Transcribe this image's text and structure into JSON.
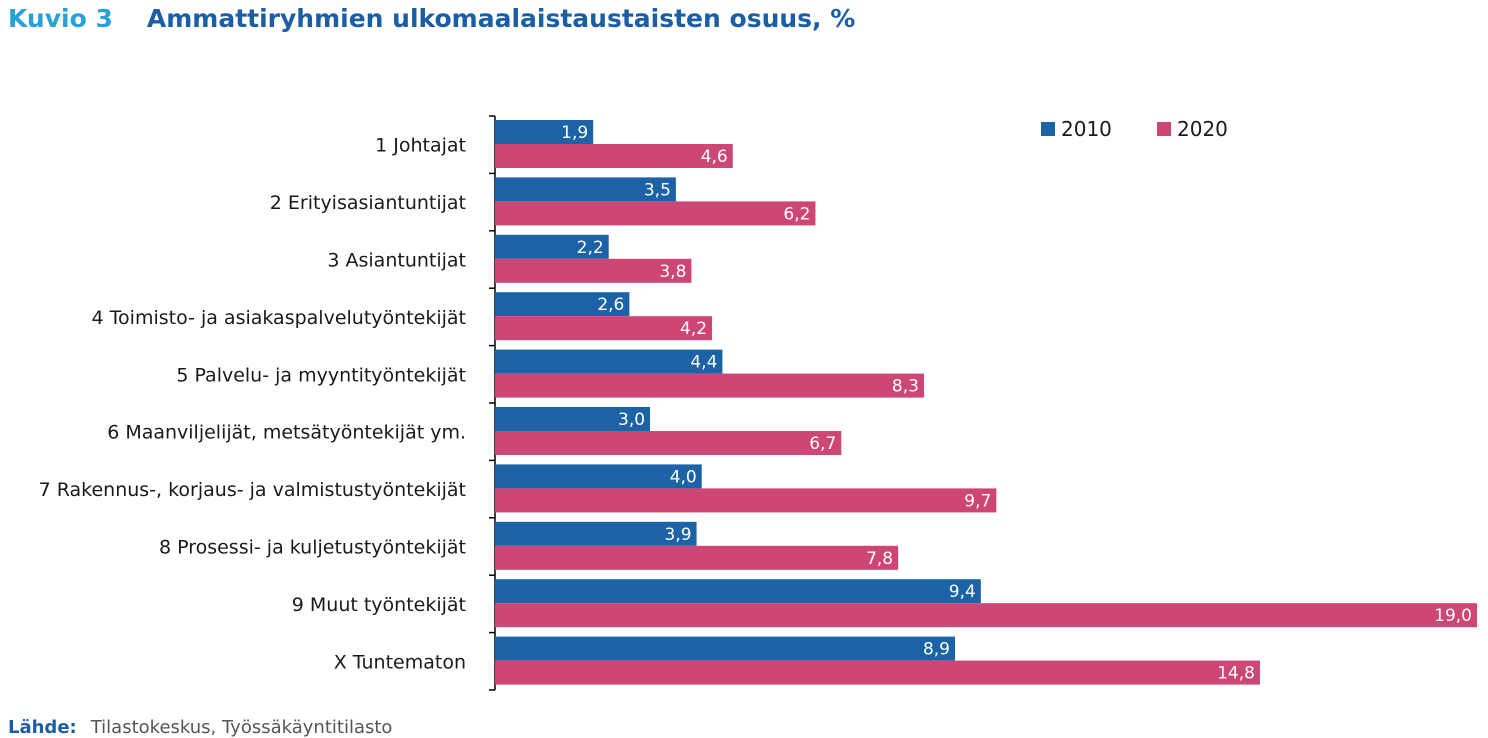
{
  "figure": {
    "number": "Kuvio 3",
    "title": "Ammattiryhmien ulkomaalaistaustaisten osuus, %"
  },
  "source": {
    "label": "Lähde:",
    "text": "Tilastokeskus, Työssäkäyntitilasto"
  },
  "colors": {
    "series_2010": "#1b63a6",
    "series_2020": "#cd4676",
    "axis": "#000000",
    "label_text": "#1a1a1a",
    "bar_label_text": "#ffffff"
  },
  "chart_data": {
    "type": "bar",
    "orientation": "horizontal",
    "title": "Ammattiryhmien ulkomaalaistaustaisten osuus, %",
    "categories": [
      "1 Johtajat",
      "2 Erityisasiantuntijat",
      "3 Asiantuntijat",
      "4 Toimisto- ja asiakaspalvelutyöntekijät",
      "5 Palvelu- ja myyntityöntekijät",
      "6 Maanviljelijät, metsätyöntekijät ym.",
      "7 Rakennus-, korjaus- ja valmistustyöntekijät",
      "8 Prosessi- ja kuljetustyöntekijät",
      "9 Muut työntekijät",
      "X Tuntematon"
    ],
    "series": [
      {
        "name": "2010",
        "values": [
          1.9,
          3.5,
          2.2,
          2.6,
          4.4,
          3.0,
          4.0,
          3.9,
          9.4,
          8.9
        ],
        "labels": [
          "1,9",
          "3,5",
          "2,2",
          "2,6",
          "4,4",
          "3,0",
          "4,0",
          "3,9",
          "9,4",
          "8,9"
        ]
      },
      {
        "name": "2020",
        "values": [
          4.6,
          6.2,
          3.8,
          4.2,
          8.3,
          6.7,
          9.7,
          7.8,
          19.0,
          14.8
        ],
        "labels": [
          "4,6",
          "6,2",
          "3,8",
          "4,2",
          "8,3",
          "6,7",
          "9,7",
          "7,8",
          "19,0",
          "14,8"
        ]
      }
    ],
    "xlim": [
      0,
      19.0
    ],
    "grid": false,
    "value_axis_visible": false,
    "legend": "top-right"
  }
}
